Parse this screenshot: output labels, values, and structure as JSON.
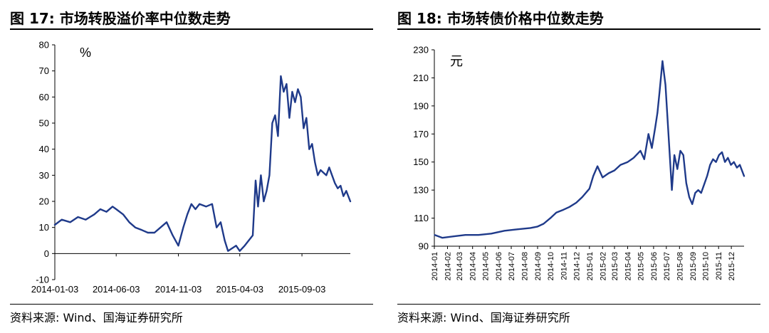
{
  "left_panel": {
    "title": "图 17:  市场转股溢价率中位数走势",
    "source": "资料来源:  Wind、国海证券研究所"
  },
  "right_panel": {
    "title": "图 18:  市场转债价格中位数走势",
    "source": "资料来源:  Wind、国海证券研究所"
  },
  "chart_data": [
    {
      "type": "line",
      "title": "",
      "unit_label": "%",
      "xlabel": "",
      "ylabel": "",
      "ylim": [
        -10,
        80
      ],
      "yticks": [
        -10,
        0,
        10,
        20,
        30,
        40,
        50,
        60,
        70,
        80
      ],
      "xticks": [
        "2014-01-03",
        "2014-06-03",
        "2014-11-03",
        "2015-04-03",
        "2015-09-03"
      ],
      "xlim": [
        "2014-01-03",
        "2015-12-31"
      ],
      "line_color": "#1f3a8a",
      "series": [
        {
          "x": [
            "2014-01-03",
            "2014-01-20",
            "2014-02-10",
            "2014-03-01",
            "2014-03-20",
            "2014-04-10",
            "2014-04-25",
            "2014-05-10",
            "2014-05-25",
            "2014-06-03",
            "2014-06-20",
            "2014-07-05",
            "2014-07-20",
            "2014-08-05",
            "2014-08-20",
            "2014-09-05",
            "2014-09-20",
            "2014-10-05",
            "2014-10-20",
            "2014-11-03",
            "2014-11-15",
            "2014-11-25",
            "2014-12-05",
            "2014-12-15",
            "2014-12-25",
            "2015-01-10",
            "2015-01-25",
            "2015-02-05",
            "2015-02-15",
            "2015-02-25",
            "2015-03-05",
            "2015-03-15",
            "2015-03-25",
            "2015-04-03",
            "2015-04-15",
            "2015-04-25",
            "2015-05-05",
            "2015-05-12",
            "2015-05-18",
            "2015-05-25",
            "2015-06-01",
            "2015-06-08",
            "2015-06-15",
            "2015-06-22",
            "2015-06-29",
            "2015-07-06",
            "2015-07-13",
            "2015-07-20",
            "2015-07-27",
            "2015-08-03",
            "2015-08-10",
            "2015-08-17",
            "2015-08-24",
            "2015-08-31",
            "2015-09-07",
            "2015-09-14",
            "2015-09-21",
            "2015-09-28",
            "2015-10-05",
            "2015-10-12",
            "2015-10-19",
            "2015-10-26",
            "2015-11-02",
            "2015-11-09",
            "2015-11-16",
            "2015-11-23",
            "2015-11-30",
            "2015-12-07",
            "2015-12-14",
            "2015-12-21",
            "2015-12-31"
          ],
          "y": [
            11,
            13,
            12,
            14,
            13,
            15,
            17,
            16,
            18,
            17,
            15,
            12,
            10,
            9,
            8,
            8,
            10,
            12,
            7,
            3,
            10,
            15,
            19,
            17,
            19,
            18,
            19,
            10,
            12,
            5,
            1,
            2,
            3,
            1,
            3,
            5,
            7,
            28,
            18,
            30,
            20,
            24,
            30,
            50,
            53,
            45,
            68,
            62,
            65,
            52,
            62,
            58,
            63,
            60,
            48,
            52,
            40,
            42,
            35,
            30,
            32,
            31,
            30,
            33,
            30,
            27,
            25,
            26,
            22,
            24,
            20
          ]
        }
      ]
    },
    {
      "type": "line",
      "title": "",
      "unit_label": "元",
      "xlabel": "",
      "ylabel": "",
      "ylim": [
        90,
        230
      ],
      "yticks": [
        90,
        110,
        130,
        150,
        170,
        190,
        210,
        230
      ],
      "xticks": [
        "2014-01",
        "2014-02",
        "2014-03",
        "2014-04",
        "2014-05",
        "2014-06",
        "2014-07",
        "2014-08",
        "2014-09",
        "2014-10",
        "2014-11",
        "2014-12",
        "2015-01",
        "2015-02",
        "2015-03",
        "2015-04",
        "2015-05",
        "2015-06",
        "2015-07",
        "2015-08",
        "2015-09",
        "2015-10",
        "2015-11",
        "2015-12"
      ],
      "xlim": [
        "2014-01-01",
        "2015-12-31"
      ],
      "line_color": "#1f3a8a",
      "series": [
        {
          "x": [
            "2014-01-02",
            "2014-01-20",
            "2014-02-15",
            "2014-03-15",
            "2014-04-15",
            "2014-05-15",
            "2014-06-15",
            "2014-07-15",
            "2014-08-15",
            "2014-09-01",
            "2014-09-15",
            "2014-10-01",
            "2014-10-15",
            "2014-11-01",
            "2014-11-15",
            "2014-12-01",
            "2014-12-15",
            "2015-01-01",
            "2015-01-10",
            "2015-01-20",
            "2015-02-01",
            "2015-02-15",
            "2015-03-01",
            "2015-03-15",
            "2015-04-01",
            "2015-04-15",
            "2015-05-01",
            "2015-05-10",
            "2015-05-20",
            "2015-05-28",
            "2015-06-05",
            "2015-06-10",
            "2015-06-15",
            "2015-06-22",
            "2015-06-29",
            "2015-07-03",
            "2015-07-08",
            "2015-07-14",
            "2015-07-20",
            "2015-07-27",
            "2015-08-03",
            "2015-08-10",
            "2015-08-17",
            "2015-08-24",
            "2015-08-31",
            "2015-09-07",
            "2015-09-14",
            "2015-09-21",
            "2015-09-28",
            "2015-10-05",
            "2015-10-12",
            "2015-10-19",
            "2015-10-26",
            "2015-11-02",
            "2015-11-09",
            "2015-11-16",
            "2015-11-23",
            "2015-11-30",
            "2015-12-07",
            "2015-12-14",
            "2015-12-21",
            "2015-12-31"
          ],
          "y": [
            98,
            96,
            97,
            98,
            98,
            99,
            101,
            102,
            103,
            104,
            106,
            110,
            114,
            116,
            118,
            121,
            125,
            131,
            140,
            147,
            139,
            142,
            144,
            148,
            150,
            153,
            158,
            152,
            170,
            160,
            175,
            185,
            200,
            222,
            205,
            185,
            160,
            130,
            155,
            145,
            158,
            155,
            135,
            125,
            120,
            128,
            130,
            128,
            134,
            140,
            148,
            152,
            150,
            155,
            157,
            150,
            153,
            148,
            150,
            146,
            148,
            140
          ]
        }
      ]
    }
  ]
}
